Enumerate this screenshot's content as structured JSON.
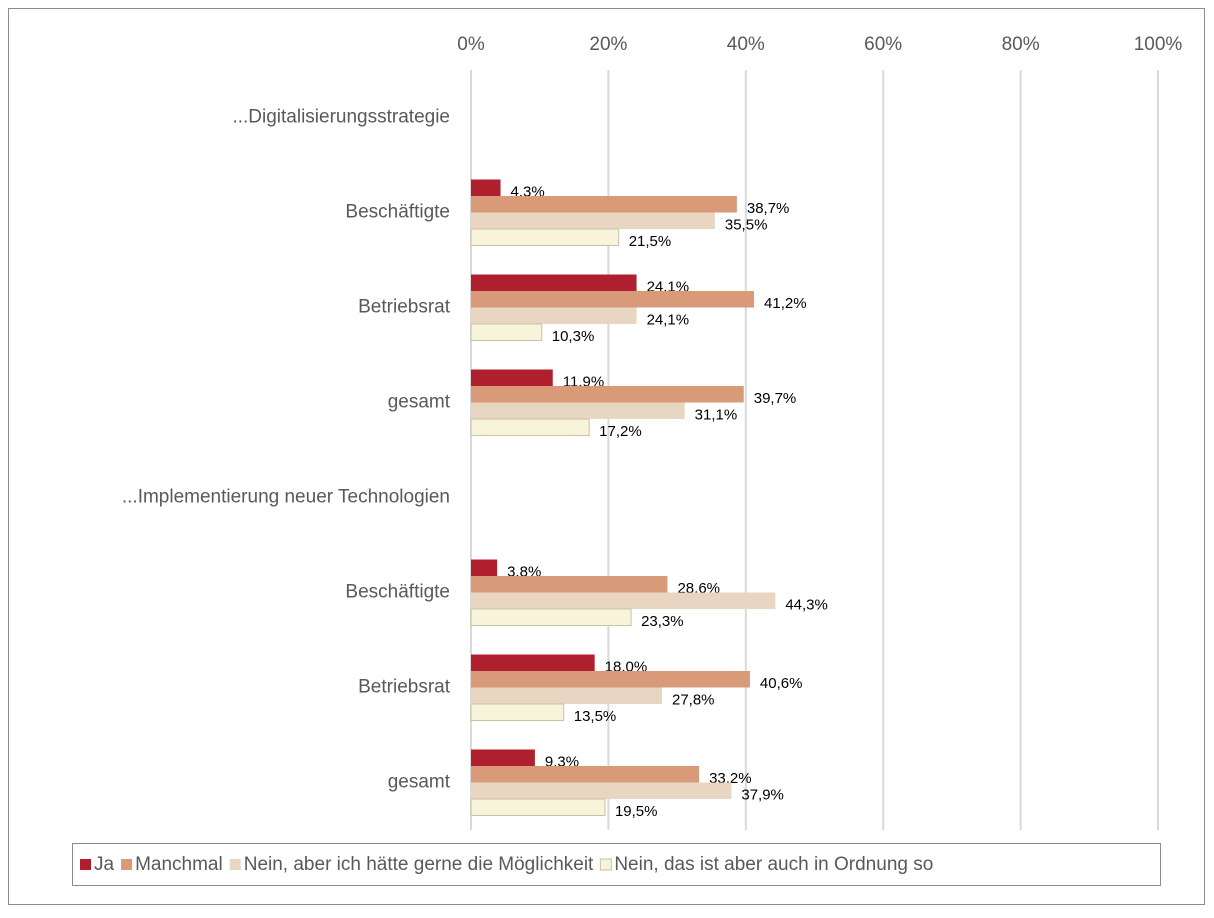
{
  "chart_data": {
    "type": "hbar",
    "categories": [
      "...Digitalisierungsstrategie",
      "Beschäftigte",
      "Betriebsrat",
      "gesamt",
      "...Implementierung neuer Technologien",
      "Beschäftigte",
      "Betriebsrat",
      "gesamt"
    ],
    "series": [
      {
        "name": "Ja",
        "color": "#b01f2e",
        "values": [
          null,
          4.3,
          24.1,
          11.9,
          null,
          3.8,
          18.0,
          9.3
        ],
        "value_labels": [
          null,
          "4,3%",
          "24,1%",
          "11,9%",
          null,
          "3,8%",
          "18,0%",
          "9,3%"
        ]
      },
      {
        "name": "Manchmal",
        "color": "#d89a78",
        "values": [
          null,
          38.7,
          41.2,
          39.7,
          null,
          28.6,
          40.6,
          33.2
        ],
        "value_labels": [
          null,
          "38,7%",
          "41,2%",
          "39,7%",
          null,
          "28,6%",
          "40,6%",
          "33,2%"
        ]
      },
      {
        "name": "Nein, aber ich hätte gerne die Möglichkeit",
        "color": "#e9d6c2",
        "values": [
          null,
          35.5,
          24.1,
          31.1,
          null,
          44.3,
          27.8,
          37.9
        ],
        "value_labels": [
          null,
          "35,5%",
          "24,1%",
          "31,1%",
          null,
          "44,3%",
          "27,8%",
          "37,9%"
        ]
      },
      {
        "name": "Nein, das ist aber auch in Ordnung so",
        "color": "#f8f4dc",
        "values": [
          null,
          21.5,
          10.3,
          17.2,
          null,
          23.3,
          13.5,
          19.5
        ],
        "value_labels": [
          null,
          "21,5%",
          "10,3%",
          "17,2%",
          null,
          "23,3%",
          "13,5%",
          "19,5%"
        ]
      }
    ],
    "xlim": [
      0,
      100
    ],
    "xticks": [
      {
        "value": 0,
        "label": "0%"
      },
      {
        "value": 20,
        "label": "20%"
      },
      {
        "value": 40,
        "label": "40%"
      },
      {
        "value": 60,
        "label": "60%"
      },
      {
        "value": 80,
        "label": "80%"
      },
      {
        "value": 100,
        "label": "100%"
      }
    ],
    "grid": true,
    "legend": "bottom"
  }
}
